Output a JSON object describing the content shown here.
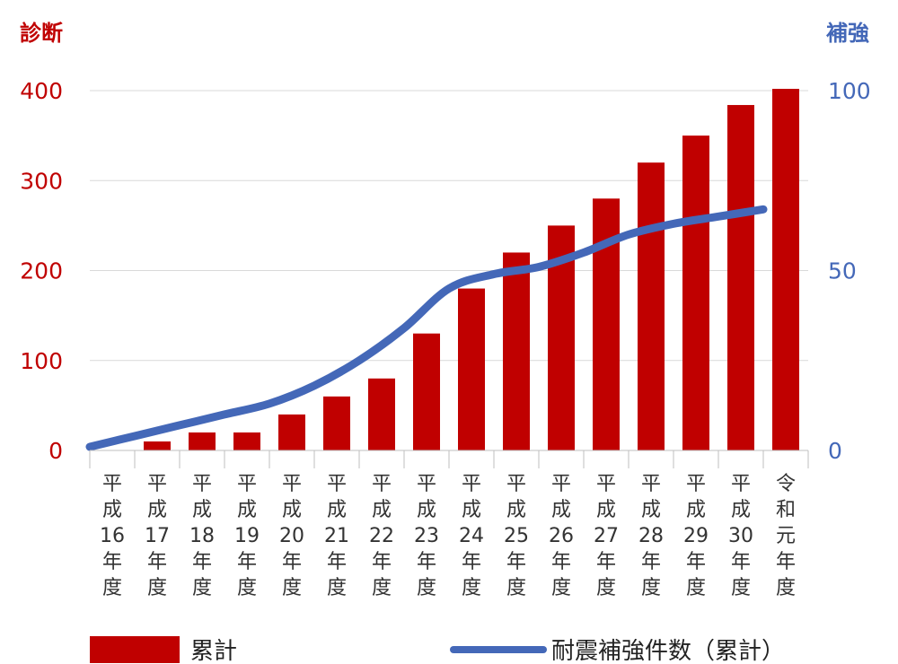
{
  "chart_data": {
    "type": "bar+line",
    "title": "",
    "categories": [
      [
        "平",
        "成",
        "16",
        "年",
        "度"
      ],
      [
        "平",
        "成",
        "17",
        "年",
        "度"
      ],
      [
        "平",
        "成",
        "18",
        "年",
        "度"
      ],
      [
        "平",
        "成",
        "19",
        "年",
        "度"
      ],
      [
        "平",
        "成",
        "20",
        "年",
        "度"
      ],
      [
        "平",
        "成",
        "21",
        "年",
        "度"
      ],
      [
        "平",
        "成",
        "22",
        "年",
        "度"
      ],
      [
        "平",
        "成",
        "23",
        "年",
        "度"
      ],
      [
        "平",
        "成",
        "24",
        "年",
        "度"
      ],
      [
        "平",
        "成",
        "25",
        "年",
        "度"
      ],
      [
        "平",
        "成",
        "26",
        "年",
        "度"
      ],
      [
        "平",
        "成",
        "27",
        "年",
        "度"
      ],
      [
        "平",
        "成",
        "28",
        "年",
        "度"
      ],
      [
        "平",
        "成",
        "29",
        "年",
        "度"
      ],
      [
        "平",
        "成",
        "30",
        "年",
        "度"
      ],
      [
        "令",
        "和",
        "元",
        "年",
        "度"
      ]
    ],
    "left_axis": {
      "label": "診断",
      "ticks": [
        "0",
        "100",
        "200",
        "300",
        "400"
      ],
      "ylim": [
        0,
        400
      ],
      "color": "#C00000"
    },
    "right_axis": {
      "label": "補強",
      "ticks": [
        "0",
        "50",
        "100"
      ],
      "ylim": [
        0,
        100
      ],
      "color": "#4468B8"
    },
    "series": [
      {
        "name": "累計",
        "type": "bar",
        "axis": "left",
        "color": "#C00000",
        "values": [
          0,
          10,
          20,
          20,
          40,
          60,
          80,
          130,
          180,
          220,
          250,
          280,
          320,
          350,
          384,
          402
        ]
      },
      {
        "name": "耐震補強件数（累計）",
        "type": "line",
        "axis": "right",
        "color": "#4468B8",
        "values": [
          1,
          4,
          7,
          10,
          13,
          18,
          25,
          34,
          45,
          49,
          51,
          55,
          60,
          63,
          65,
          67
        ]
      }
    ],
    "grid": true,
    "legend_position": "bottom"
  }
}
